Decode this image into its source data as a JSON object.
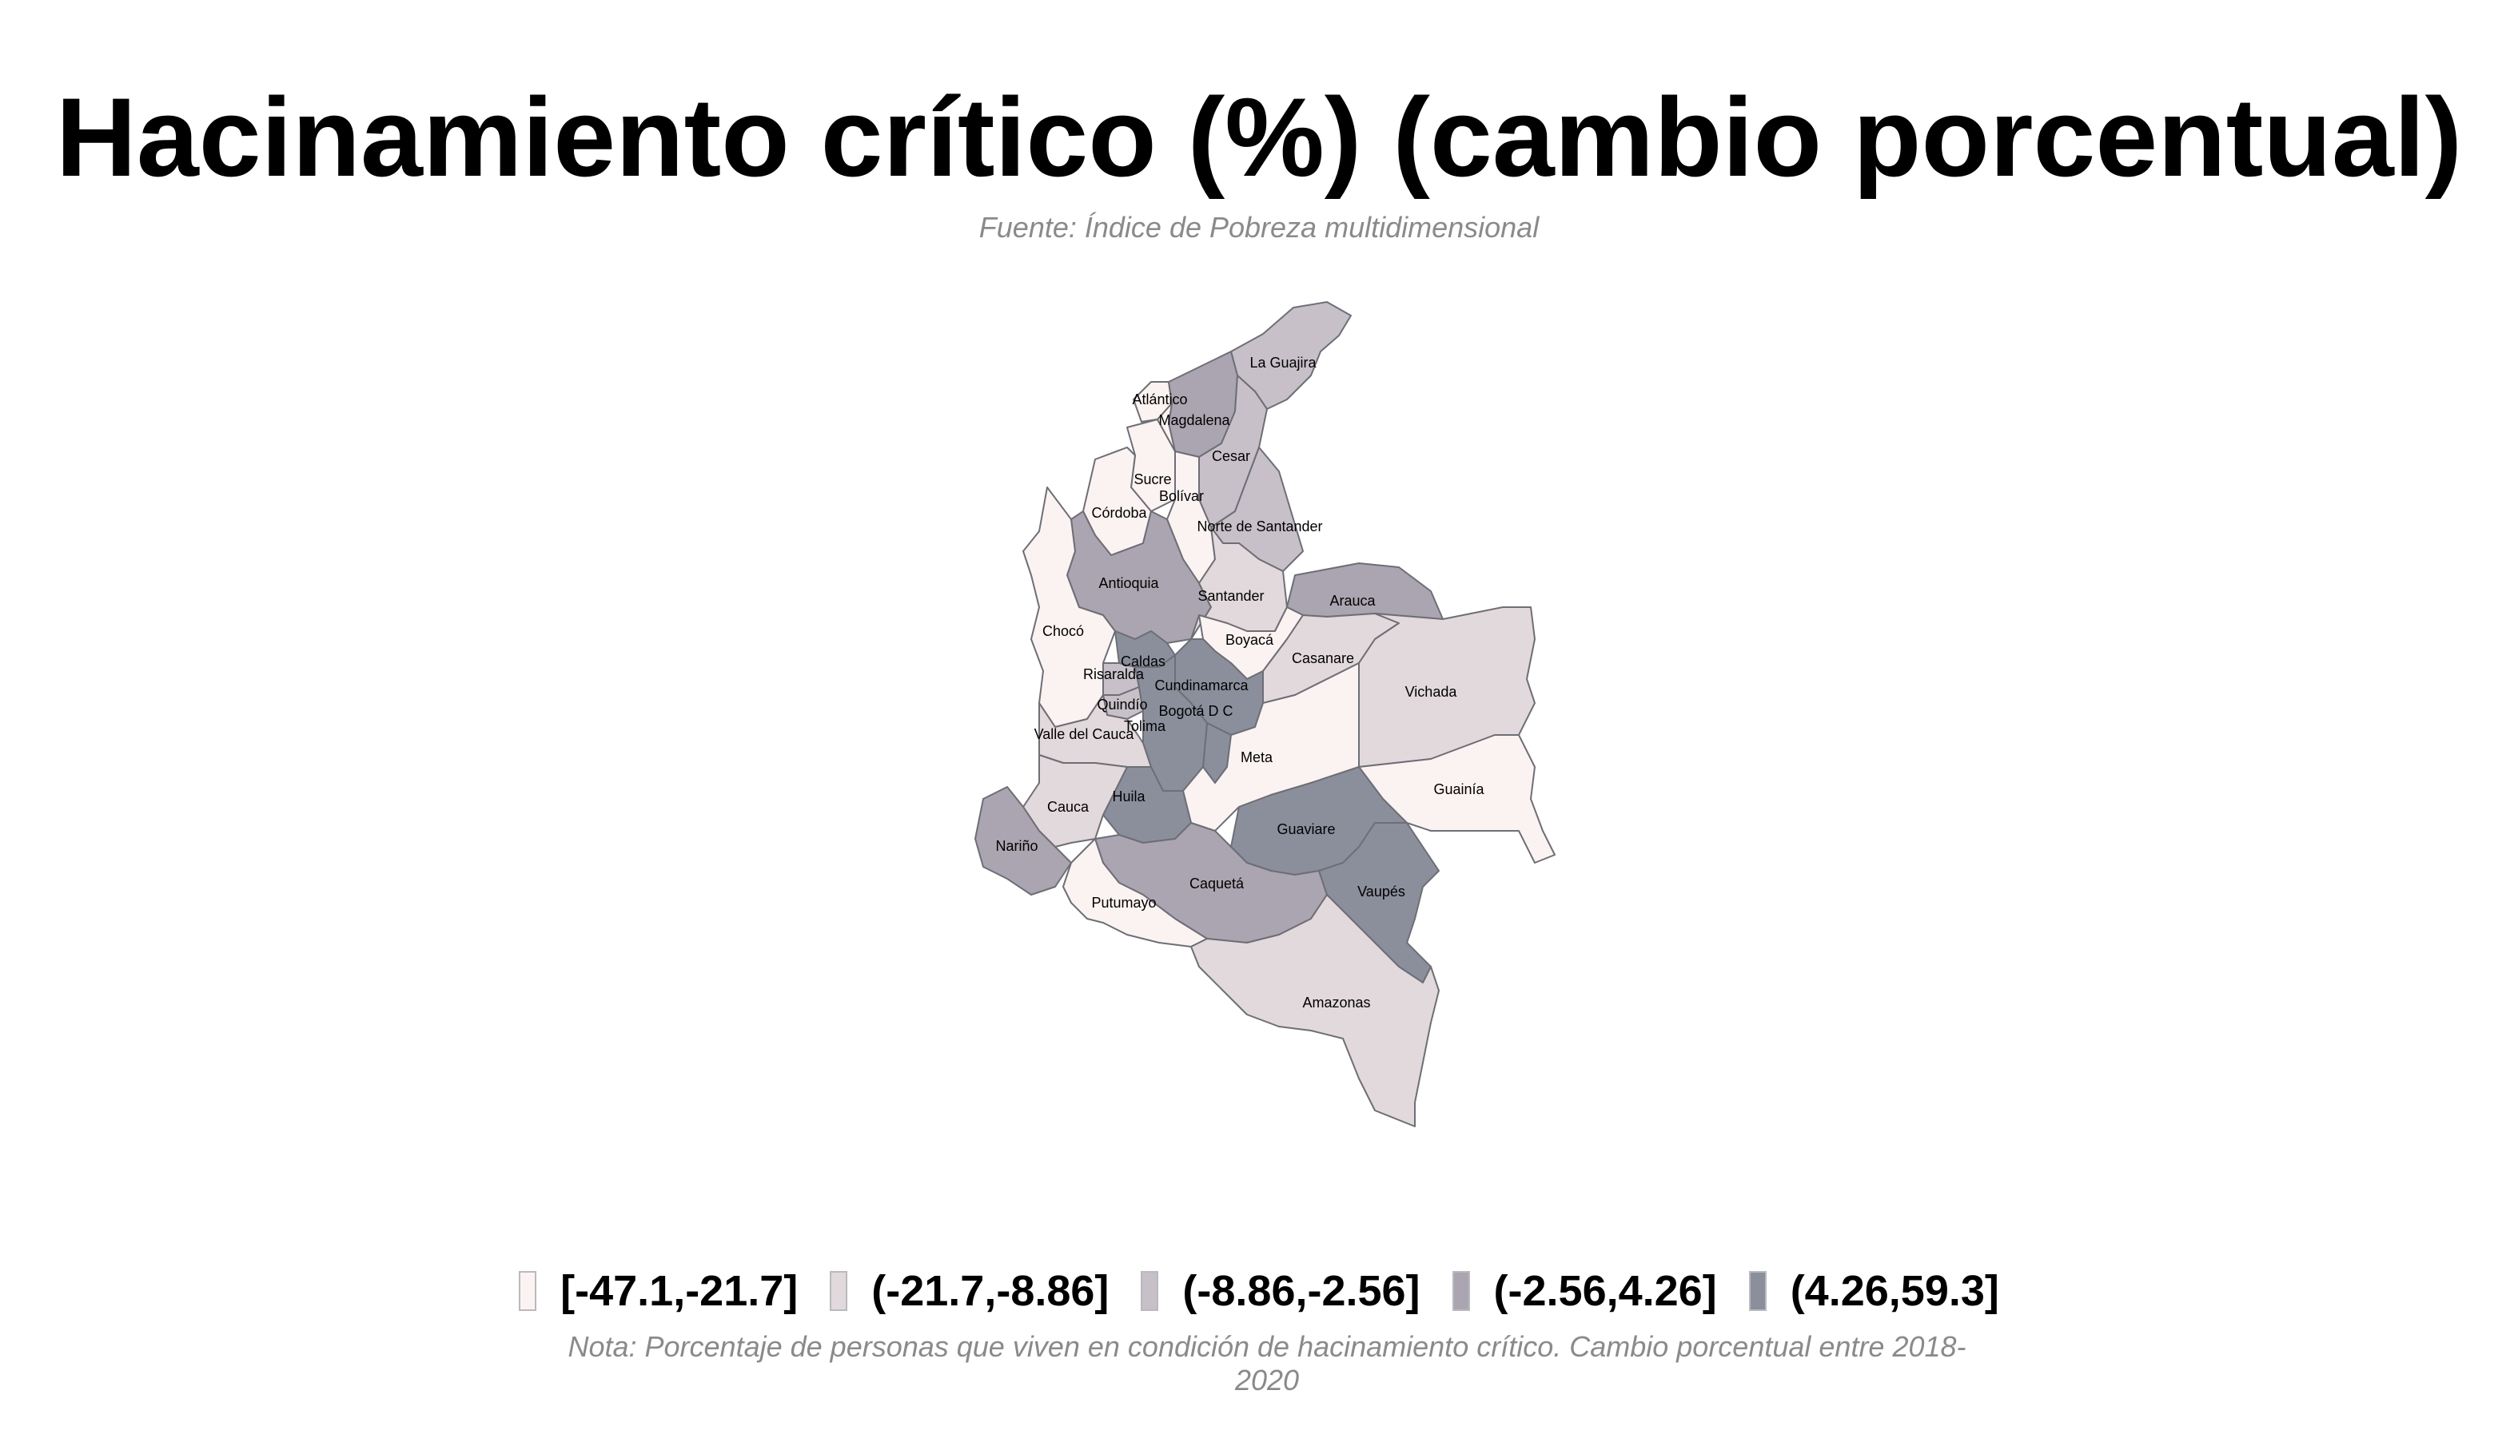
{
  "title": "Hacinamiento crítico (%) (cambio porcentual)",
  "subtitle": "Fuente: Índice de Pobreza multidimensional",
  "note": "Nota: Porcentaje de personas que viven en condición de hacinamiento crítico. Cambio porcentual entre 2018-2020",
  "legend": [
    {
      "label": "[-47.1,-21.7]",
      "color": "#fbf3f2"
    },
    {
      "label": "(-21.7,-8.86]",
      "color": "#e2d9dc"
    },
    {
      "label": "(-8.86,-2.56]",
      "color": "#c7c0c8"
    },
    {
      "label": "(-2.56,4.26]",
      "color": "#aaa5b0"
    },
    {
      "label": "(4.26,59.3]",
      "color": "#8b8f9c"
    }
  ],
  "departments": [
    {
      "name": "La Guajira",
      "bin": 2
    },
    {
      "name": "Atlántico",
      "bin": 0
    },
    {
      "name": "Magdalena",
      "bin": 3
    },
    {
      "name": "Cesar",
      "bin": 2
    },
    {
      "name": "Sucre",
      "bin": 0
    },
    {
      "name": "Bolívar",
      "bin": 0
    },
    {
      "name": "Córdoba",
      "bin": 0
    },
    {
      "name": "Norte de Santander",
      "bin": 2
    },
    {
      "name": "Antioquia",
      "bin": 3
    },
    {
      "name": "Santander",
      "bin": 1
    },
    {
      "name": "Arauca",
      "bin": 3
    },
    {
      "name": "Chocó",
      "bin": 0
    },
    {
      "name": "Boyacá",
      "bin": 0
    },
    {
      "name": "Casanare",
      "bin": 1
    },
    {
      "name": "Vichada",
      "bin": 1
    },
    {
      "name": "Caldas",
      "bin": 4
    },
    {
      "name": "Risaralda",
      "bin": 2
    },
    {
      "name": "Cundinamarca",
      "bin": 4
    },
    {
      "name": "Bogotá D C",
      "bin": 4
    },
    {
      "name": "Quindío",
      "bin": 2
    },
    {
      "name": "Tolima",
      "bin": 4
    },
    {
      "name": "Valle del Cauca",
      "bin": 1
    },
    {
      "name": "Meta",
      "bin": 0
    },
    {
      "name": "Guainía",
      "bin": 0
    },
    {
      "name": "Huila",
      "bin": 4
    },
    {
      "name": "Cauca",
      "bin": 1
    },
    {
      "name": "Guaviare",
      "bin": 4
    },
    {
      "name": "Nariño",
      "bin": 3
    },
    {
      "name": "Caquetá",
      "bin": 3
    },
    {
      "name": "Vaupés",
      "bin": 4
    },
    {
      "name": "Putumayo",
      "bin": 0
    },
    {
      "name": "Amazonas",
      "bin": 1
    }
  ]
}
